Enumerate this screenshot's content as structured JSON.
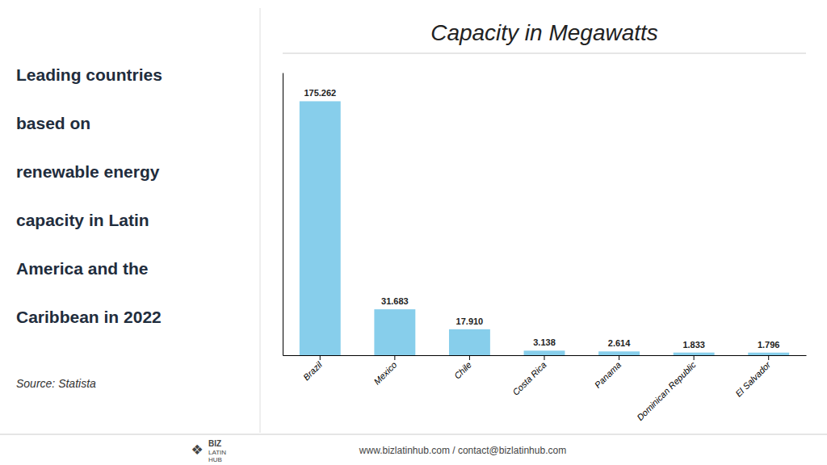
{
  "chart_data": {
    "type": "bar",
    "title": "Capacity in Megawatts",
    "categories": [
      "Brazil",
      "Mexico",
      "Chile",
      "Costa Rica",
      "Panama",
      "Dominican Republic",
      "El Salvador"
    ],
    "values": [
      175.262,
      31.683,
      17.91,
      3.138,
      2.614,
      1.833,
      1.796
    ],
    "value_labels": [
      "175.262",
      "31.683",
      "17.910",
      "3.138",
      "2.614",
      "1.833",
      "1.796"
    ],
    "color": "#87CEEB",
    "ylim": [
      0,
      195
    ],
    "yticks": [],
    "grid": false,
    "data_labels": true,
    "tick_labels": "x",
    "annotations": [
      "Leading countries",
      "based on",
      "renewable energy",
      "capacity in Latin",
      "America and the",
      "Caribbean in 2022",
      "Source: Statista",
      "❖",
      "BIZ",
      "LATIN",
      "HUB",
      "www.bizlatinhub.com / contact@bizlatinhub.com"
    ]
  }
}
